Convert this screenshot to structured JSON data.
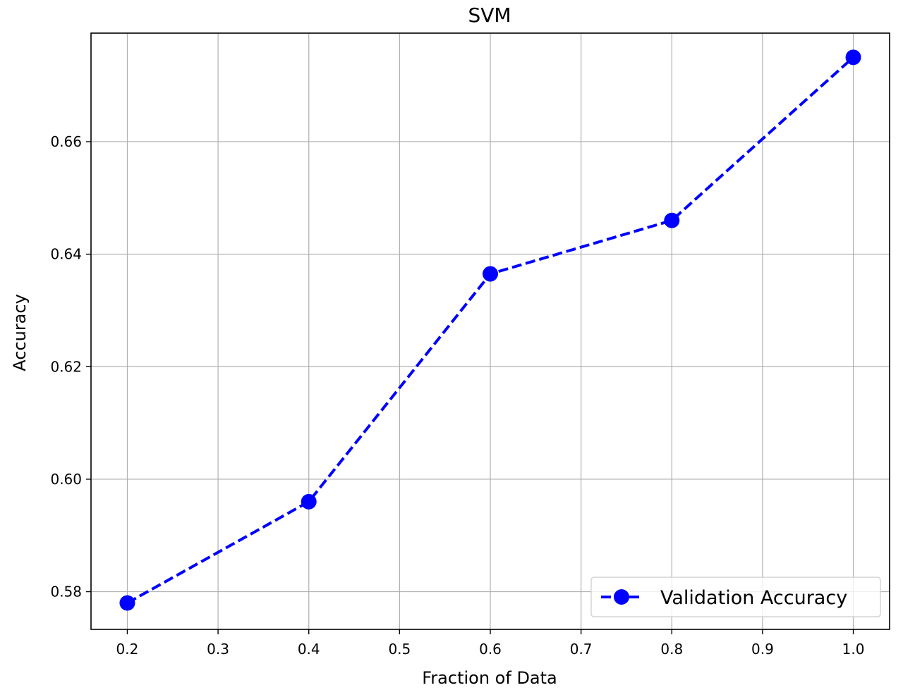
{
  "chart_data": {
    "type": "line",
    "title": "SVM",
    "xlabel": "Fraction of Data",
    "ylabel": "Accuracy",
    "x": [
      0.2,
      0.4,
      0.6,
      0.8,
      1.0
    ],
    "series": [
      {
        "name": "Validation Accuracy",
        "values": [
          0.578,
          0.596,
          0.6365,
          0.646,
          0.675
        ],
        "color": "#0000ff",
        "line_style": "dashed",
        "marker": "circle"
      }
    ],
    "xlim": [
      0.16,
      1.04
    ],
    "ylim": [
      0.5733,
      0.6793
    ],
    "xticks": [
      "0.2",
      "0.3",
      "0.4",
      "0.5",
      "0.6",
      "0.7",
      "0.8",
      "0.9",
      "1.0"
    ],
    "yticks": [
      "0.58",
      "0.60",
      "0.62",
      "0.64",
      "0.66"
    ],
    "grid": true,
    "legend_position": "lower-right"
  }
}
